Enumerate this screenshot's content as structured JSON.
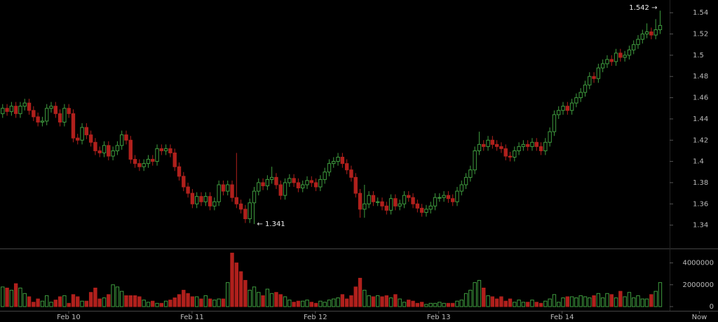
{
  "chart_data": {
    "type": "candlestick",
    "up_color": "#3f9c3f",
    "down_color": "#b0201c",
    "open": [
      1.445,
      1.45,
      1.447,
      1.452,
      1.445,
      1.452,
      1.455,
      1.448,
      1.442,
      1.437,
      1.438,
      1.45,
      1.452,
      1.445,
      1.437,
      1.45,
      1.445,
      1.422,
      1.42,
      1.432,
      1.425,
      1.418,
      1.41,
      1.408,
      1.415,
      1.405,
      1.41,
      1.415,
      1.425,
      1.42,
      1.402,
      1.398,
      1.395,
      1.398,
      1.402,
      1.4,
      1.412,
      1.41,
      1.412,
      1.408,
      1.395,
      1.386,
      1.376,
      1.37,
      1.36,
      1.367,
      1.362,
      1.367,
      1.358,
      1.362,
      1.378,
      1.372,
      1.378,
      1.366,
      1.36,
      1.355,
      1.346,
      1.361,
      1.372,
      1.38,
      1.377,
      1.383,
      1.385,
      1.378,
      1.368,
      1.38,
      1.384,
      1.38,
      1.375,
      1.378,
      1.382,
      1.38,
      1.376,
      1.383,
      1.39,
      1.398,
      1.4,
      1.404,
      1.398,
      1.392,
      1.385,
      1.37,
      1.355,
      1.36,
      1.368,
      1.362,
      1.362,
      1.358,
      1.354,
      1.365,
      1.358,
      1.36,
      1.368,
      1.366,
      1.36,
      1.356,
      1.352,
      1.355,
      1.358,
      1.366,
      1.366,
      1.368,
      1.365,
      1.362,
      1.372,
      1.378,
      1.385,
      1.392,
      1.41,
      1.416,
      1.414,
      1.42,
      1.416,
      1.414,
      1.412,
      1.405,
      1.404,
      1.41,
      1.414,
      1.416,
      1.414,
      1.418,
      1.414,
      1.41,
      1.418,
      1.428,
      1.444,
      1.448,
      1.452,
      1.448,
      1.455,
      1.46,
      1.465,
      1.472,
      1.48,
      1.478,
      1.488,
      1.492,
      1.496,
      1.494,
      1.502,
      1.498,
      1.5,
      1.505,
      1.51,
      1.515,
      1.52,
      1.522,
      1.519,
      1.524
    ],
    "high": [
      1.454,
      1.454,
      1.456,
      1.456,
      1.456,
      1.459,
      1.459,
      1.452,
      1.446,
      1.442,
      1.454,
      1.456,
      1.456,
      1.449,
      1.454,
      1.454,
      1.449,
      1.426,
      1.436,
      1.436,
      1.429,
      1.422,
      1.414,
      1.419,
      1.419,
      1.414,
      1.419,
      1.429,
      1.429,
      1.424,
      1.406,
      1.402,
      1.402,
      1.406,
      1.406,
      1.416,
      1.416,
      1.416,
      1.416,
      1.412,
      1.399,
      1.39,
      1.38,
      1.374,
      1.371,
      1.371,
      1.371,
      1.371,
      1.366,
      1.382,
      1.382,
      1.382,
      1.382,
      1.408,
      1.364,
      1.359,
      1.365,
      1.376,
      1.384,
      1.384,
      1.387,
      1.395,
      1.389,
      1.382,
      1.384,
      1.388,
      1.388,
      1.384,
      1.382,
      1.386,
      1.386,
      1.384,
      1.387,
      1.394,
      1.402,
      1.404,
      1.408,
      1.408,
      1.402,
      1.396,
      1.389,
      1.374,
      1.378,
      1.372,
      1.372,
      1.366,
      1.366,
      1.362,
      1.369,
      1.369,
      1.364,
      1.372,
      1.372,
      1.37,
      1.364,
      1.36,
      1.359,
      1.362,
      1.37,
      1.37,
      1.372,
      1.372,
      1.369,
      1.376,
      1.382,
      1.389,
      1.396,
      1.414,
      1.428,
      1.42,
      1.424,
      1.424,
      1.42,
      1.418,
      1.416,
      1.409,
      1.414,
      1.418,
      1.42,
      1.42,
      1.422,
      1.422,
      1.418,
      1.422,
      1.432,
      1.448,
      1.452,
      1.456,
      1.456,
      1.459,
      1.464,
      1.469,
      1.476,
      1.484,
      1.484,
      1.492,
      1.496,
      1.5,
      1.5,
      1.506,
      1.506,
      1.504,
      1.509,
      1.514,
      1.519,
      1.524,
      1.53,
      1.526,
      1.534,
      1.542
    ],
    "low": [
      1.441,
      1.443,
      1.443,
      1.441,
      1.441,
      1.448,
      1.444,
      1.438,
      1.433,
      1.433,
      1.434,
      1.446,
      1.441,
      1.433,
      1.433,
      1.441,
      1.418,
      1.416,
      1.416,
      1.421,
      1.414,
      1.406,
      1.404,
      1.404,
      1.401,
      1.401,
      1.406,
      1.411,
      1.416,
      1.398,
      1.394,
      1.391,
      1.391,
      1.394,
      1.396,
      1.396,
      1.406,
      1.406,
      1.404,
      1.391,
      1.382,
      1.372,
      1.366,
      1.356,
      1.356,
      1.358,
      1.358,
      1.354,
      1.354,
      1.358,
      1.368,
      1.368,
      1.362,
      1.356,
      1.351,
      1.342,
      1.342,
      1.341,
      1.368,
      1.373,
      1.373,
      1.379,
      1.374,
      1.364,
      1.364,
      1.376,
      1.376,
      1.371,
      1.371,
      1.374,
      1.376,
      1.372,
      1.372,
      1.379,
      1.386,
      1.394,
      1.396,
      1.394,
      1.388,
      1.381,
      1.366,
      1.347,
      1.347,
      1.356,
      1.358,
      1.358,
      1.354,
      1.35,
      1.35,
      1.354,
      1.354,
      1.356,
      1.362,
      1.356,
      1.352,
      1.348,
      1.348,
      1.351,
      1.354,
      1.362,
      1.362,
      1.361,
      1.358,
      1.358,
      1.368,
      1.374,
      1.381,
      1.388,
      1.406,
      1.41,
      1.41,
      1.412,
      1.41,
      1.408,
      1.401,
      1.4,
      1.4,
      1.406,
      1.41,
      1.41,
      1.41,
      1.41,
      1.406,
      1.406,
      1.414,
      1.424,
      1.44,
      1.444,
      1.444,
      1.444,
      1.451,
      1.456,
      1.461,
      1.468,
      1.474,
      1.474,
      1.484,
      1.488,
      1.49,
      1.49,
      1.494,
      1.494,
      1.496,
      1.501,
      1.506,
      1.511,
      1.516,
      1.515,
      1.515,
      1.52
    ],
    "close": [
      1.45,
      1.447,
      1.452,
      1.445,
      1.452,
      1.455,
      1.448,
      1.442,
      1.437,
      1.438,
      1.45,
      1.452,
      1.445,
      1.437,
      1.45,
      1.445,
      1.422,
      1.42,
      1.432,
      1.425,
      1.418,
      1.41,
      1.408,
      1.415,
      1.405,
      1.41,
      1.415,
      1.425,
      1.42,
      1.402,
      1.398,
      1.395,
      1.398,
      1.402,
      1.4,
      1.412,
      1.41,
      1.412,
      1.408,
      1.395,
      1.386,
      1.376,
      1.37,
      1.36,
      1.367,
      1.362,
      1.367,
      1.358,
      1.362,
      1.378,
      1.372,
      1.378,
      1.366,
      1.36,
      1.355,
      1.346,
      1.361,
      1.372,
      1.38,
      1.377,
      1.383,
      1.385,
      1.378,
      1.368,
      1.38,
      1.384,
      1.38,
      1.375,
      1.378,
      1.382,
      1.38,
      1.376,
      1.383,
      1.39,
      1.398,
      1.4,
      1.404,
      1.398,
      1.392,
      1.385,
      1.37,
      1.355,
      1.36,
      1.368,
      1.362,
      1.362,
      1.358,
      1.354,
      1.365,
      1.358,
      1.36,
      1.368,
      1.366,
      1.36,
      1.356,
      1.352,
      1.355,
      1.358,
      1.366,
      1.366,
      1.368,
      1.365,
      1.362,
      1.372,
      1.378,
      1.385,
      1.392,
      1.41,
      1.416,
      1.414,
      1.42,
      1.416,
      1.414,
      1.412,
      1.405,
      1.404,
      1.41,
      1.414,
      1.416,
      1.414,
      1.418,
      1.414,
      1.41,
      1.418,
      1.428,
      1.444,
      1.448,
      1.452,
      1.448,
      1.455,
      1.46,
      1.465,
      1.472,
      1.48,
      1.478,
      1.488,
      1.492,
      1.496,
      1.494,
      1.502,
      1.498,
      1.5,
      1.505,
      1.51,
      1.515,
      1.52,
      1.522,
      1.519,
      1.524,
      1.528
    ],
    "volume": [
      1800000,
      1700000,
      1500000,
      2100000,
      1700000,
      1200000,
      900000,
      400000,
      700000,
      500000,
      1000000,
      400000,
      600000,
      900000,
      1000000,
      300000,
      1100000,
      900000,
      500000,
      500000,
      1300000,
      1700000,
      700000,
      800000,
      1100000,
      2000000,
      1800000,
      1400000,
      1000000,
      1000000,
      1000000,
      900000,
      600000,
      400000,
      500000,
      300000,
      300000,
      500000,
      600000,
      800000,
      1100000,
      1500000,
      1200000,
      900000,
      900000,
      700000,
      1000000,
      700000,
      600000,
      700000,
      700000,
      2200000,
      4900000,
      4000000,
      3200000,
      2400000,
      1500000,
      1800000,
      1300000,
      1000000,
      1600000,
      1200000,
      1300000,
      1100000,
      900000,
      600000,
      400000,
      500000,
      500000,
      600000,
      400000,
      300000,
      500000,
      400000,
      600000,
      700000,
      800000,
      1100000,
      700000,
      1000000,
      1800000,
      2600000,
      1500000,
      1000000,
      900000,
      1000000,
      900000,
      1000000,
      800000,
      1100000,
      700000,
      400000,
      600000,
      500000,
      300000,
      400000,
      200000,
      300000,
      300000,
      400000,
      300000,
      300000,
      300000,
      500000,
      600000,
      1200000,
      1500000,
      2200000,
      2400000,
      1700000,
      1000000,
      900000,
      700000,
      900000,
      500000,
      700000,
      400000,
      600000,
      400000,
      400000,
      600000,
      400000,
      300000,
      500000,
      700000,
      1100000,
      400000,
      800000,
      900000,
      900000,
      800000,
      1000000,
      900000,
      800000,
      1000000,
      1200000,
      800000,
      1200000,
      1100000,
      800000,
      1400000,
      900000,
      1300000,
      800000,
      1000000,
      700000,
      700000,
      1100000,
      1400000,
      2200000
    ],
    "ylim": [
      1.318,
      1.552
    ],
    "yticks": [
      1.34,
      1.36,
      1.38,
      1.4,
      1.42,
      1.44,
      1.46,
      1.48,
      1.5,
      1.52,
      1.54
    ],
    "volume_ylim": [
      0,
      5000000
    ],
    "volume_yticks": [
      0,
      2000000,
      4000000
    ],
    "xlim": [
      -0.6,
      158.3
    ],
    "xticks": [
      {
        "value": 14.97,
        "label": "Feb 10"
      },
      {
        "value": 42.92,
        "label": "Feb 11"
      },
      {
        "value": 70.87,
        "label": "Feb 12"
      },
      {
        "value": 98.83,
        "label": "Feb 13"
      },
      {
        "value": 126.78,
        "label": "Feb 14"
      },
      {
        "value": 157.9,
        "label": "Now"
      }
    ],
    "max_label": {
      "value": 1.542,
      "label": "1.542 →"
    },
    "min_label": {
      "value": 1.341,
      "label": "← 1.341"
    }
  }
}
